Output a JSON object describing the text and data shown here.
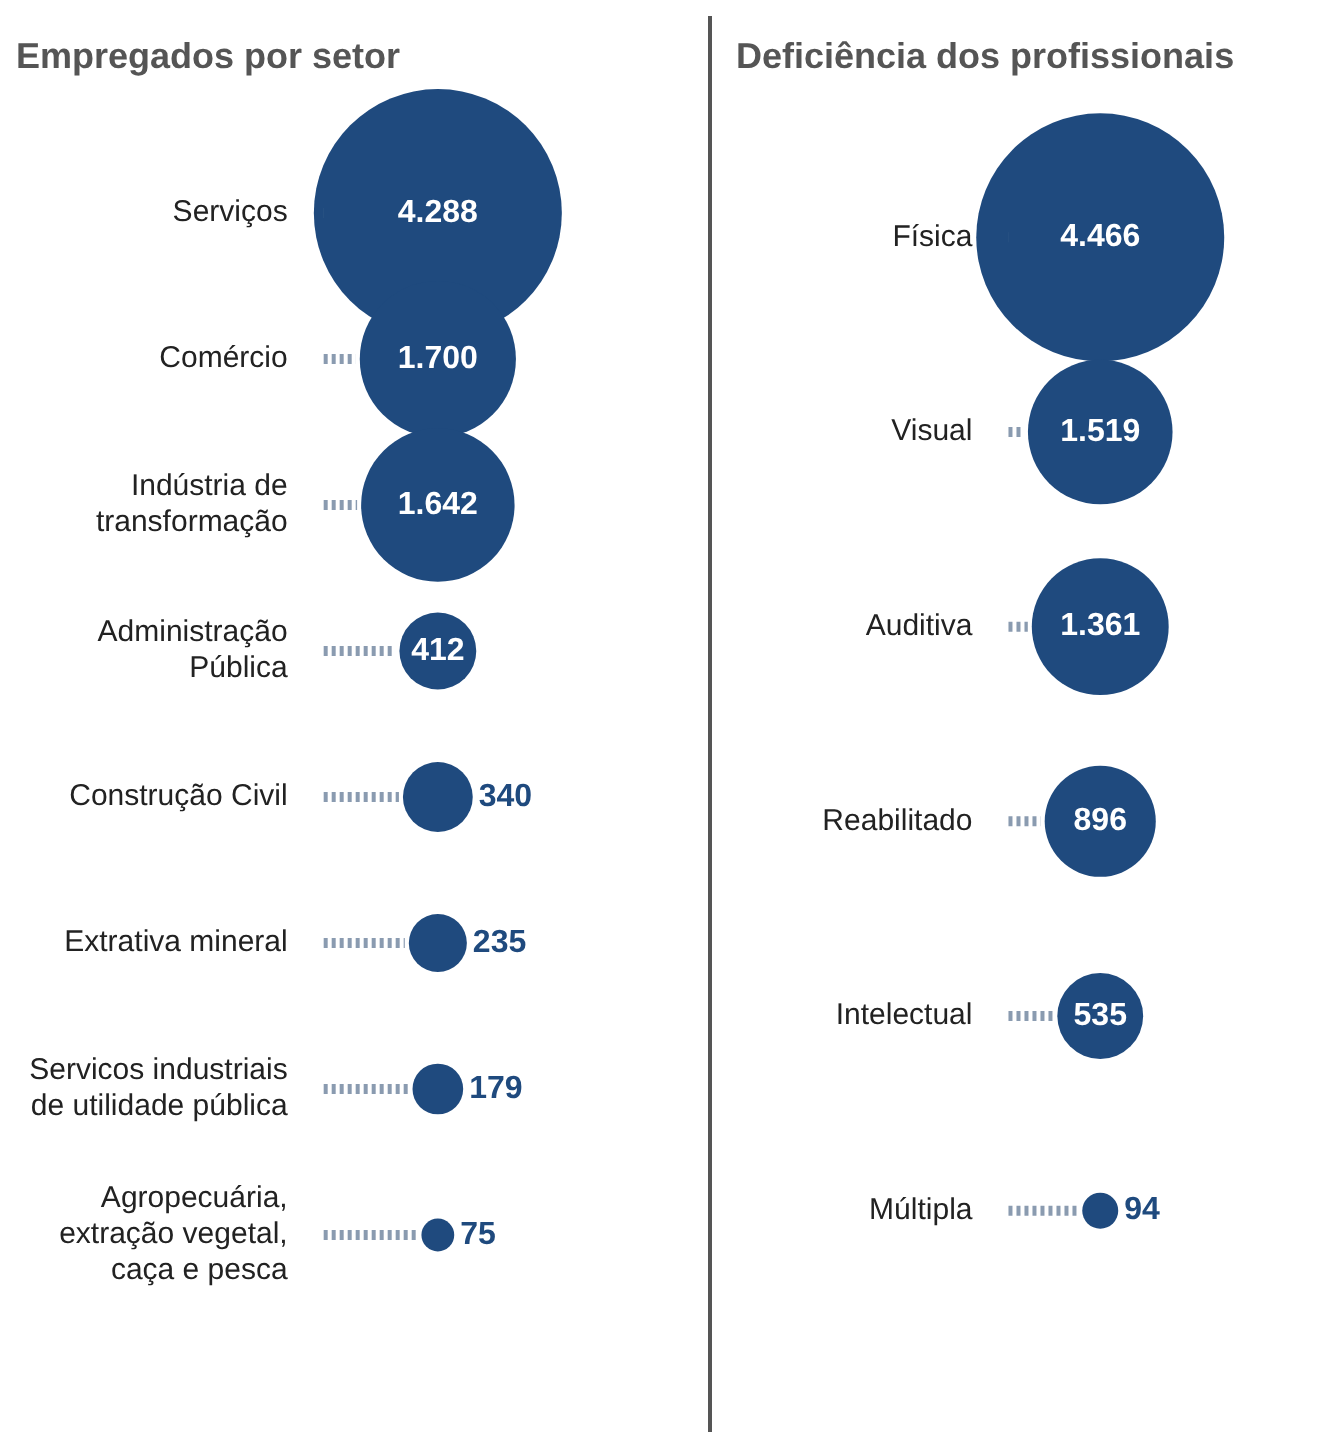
{
  "chart_data": [
    {
      "type": "other",
      "title": "Empregados por setor",
      "categories": [
        "Serviços",
        "Comércio",
        "Indústria de transformação",
        "Administração Pública",
        "Construção Civil",
        "Extrativa mineral",
        "Servicos industriais de utilidade pública",
        "Agropecuária, extração vegetal, caça e pesca"
      ],
      "values": [
        4288,
        1700,
        1642,
        412,
        340,
        235,
        179,
        75
      ],
      "value_labels": [
        "4.288",
        "1.700",
        "1.642",
        "412",
        "340",
        "235",
        "179",
        "75"
      ],
      "color": "#1f4a7e"
    },
    {
      "type": "other",
      "title": "Deficiência dos profissionais",
      "categories": [
        "Física",
        "Visual",
        "Auditiva",
        "Reabilitado",
        "Intelectual",
        "Múltipla"
      ],
      "values": [
        4466,
        1519,
        1361,
        896,
        535,
        94
      ],
      "value_labels": [
        "4.466",
        "1.519",
        "1.361",
        "896",
        "535",
        "94"
      ],
      "color": "#1f4a7e"
    }
  ]
}
